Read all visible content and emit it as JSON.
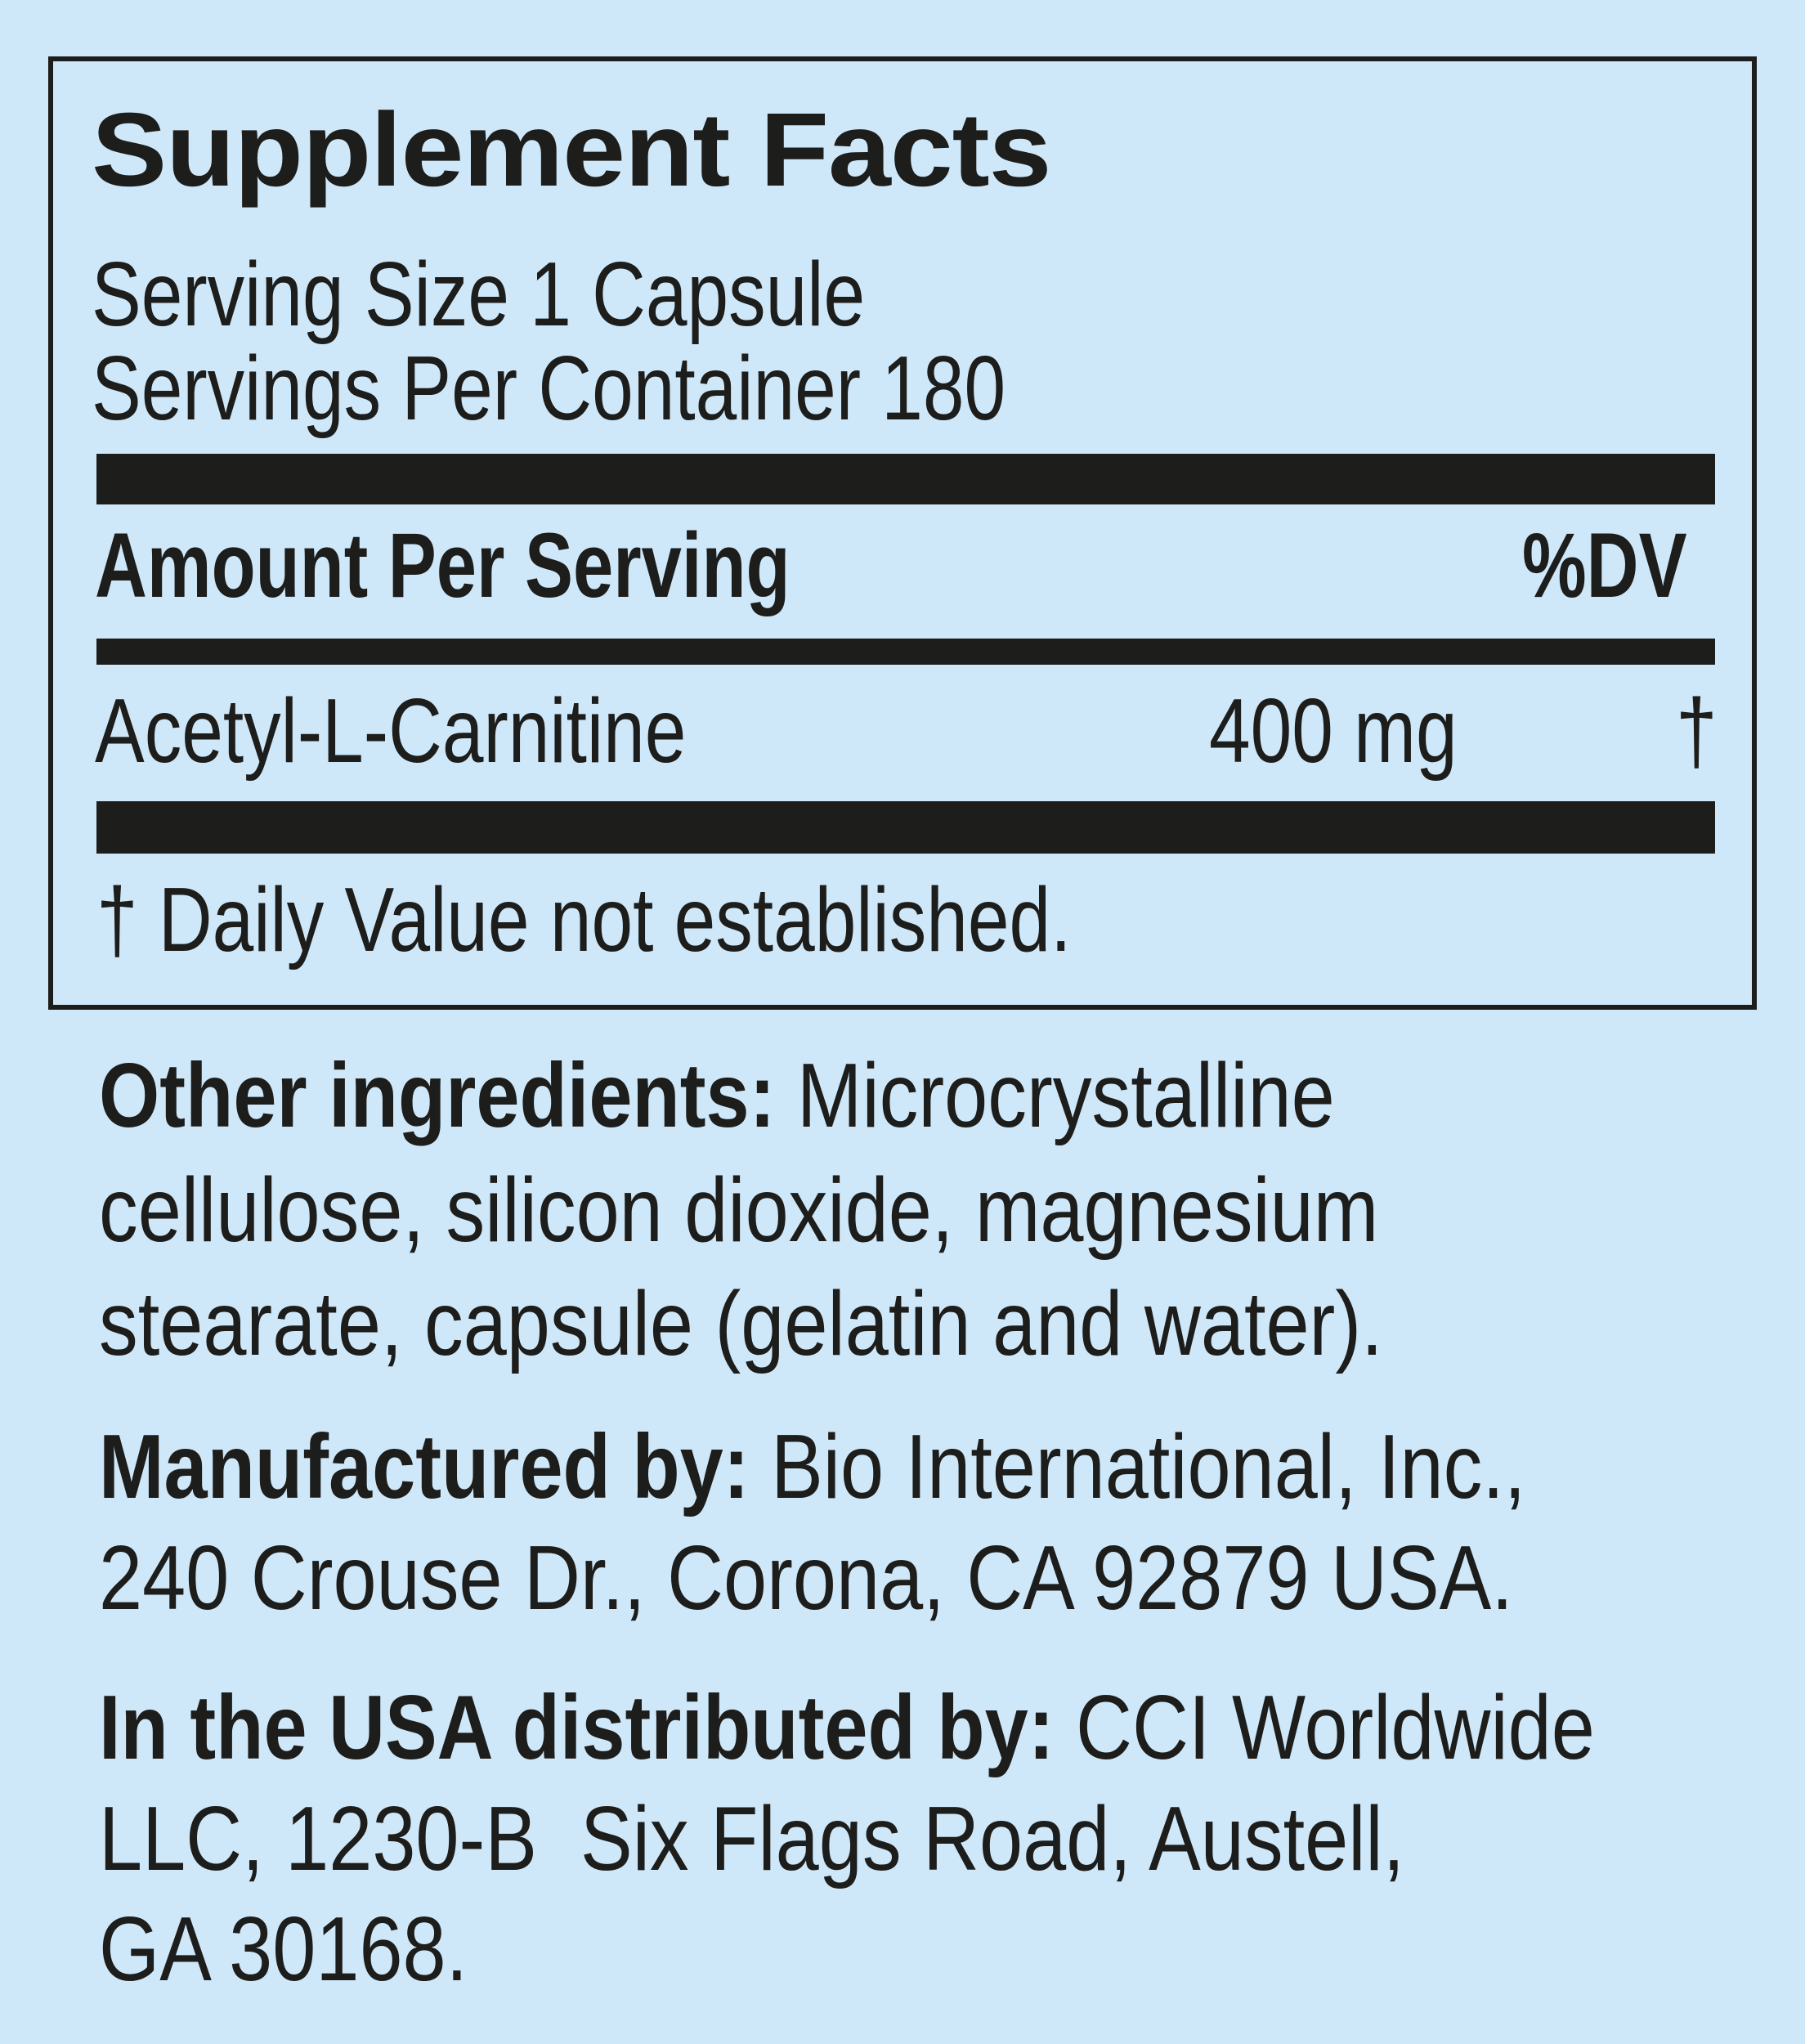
{
  "panel": {
    "title": "Supplement Facts",
    "serving_size": "Serving Size 1 Capsule",
    "servings_per_container": "Servings Per Container 180",
    "header_amount": "Amount Per Serving",
    "header_dv": "%DV",
    "ingredients": [
      {
        "name": "Acetyl-L-Carnitine",
        "amount": "400 mg",
        "dv": "†"
      }
    ],
    "footnote": "† Daily Value not established."
  },
  "other_ingredients": {
    "label": "Other ingredients:",
    "lines": [
      "Microcrystalline",
      "cellulose, silicon dioxide, magnesium",
      "stearate, capsule (gelatin and water)."
    ]
  },
  "manufacturer": {
    "label": "Manufactured by:",
    "lines": [
      "Bio International, Inc.,",
      "240 Crouse Dr., Corona, CA 92879 USA."
    ]
  },
  "distributor": {
    "label": "In the USA distributed by:",
    "lines": [
      "CCI Worldwide",
      "LLC, 1230-B  Six Flags Road, Austell,",
      "GA 30168."
    ]
  },
  "colors": {
    "background": "#cfe8f9",
    "text": "#1d1d1b"
  }
}
